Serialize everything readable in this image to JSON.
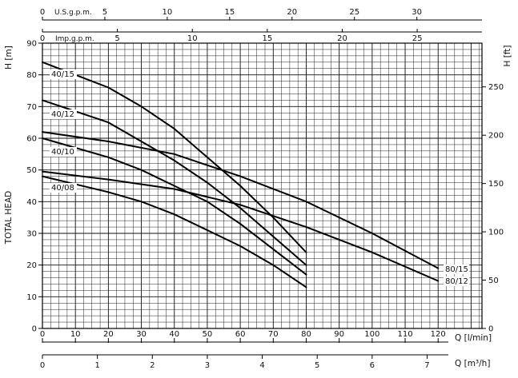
{
  "chart_data": {
    "type": "line",
    "title": "",
    "ylabel": "TOTAL HEAD",
    "y_left_unit": "H [m]",
    "y_right_unit": "H [ft]",
    "xlabel_lpm": "Q [l/min]",
    "xlabel_m3h": "Q [m³/h]",
    "xlabel_usgpm": "U.S.g.p.m.",
    "xlabel_impgpm": "Imp.g.p.m.",
    "xlim": [
      0,
      133.3
    ],
    "ylim": [
      0,
      90
    ],
    "grid": true,
    "y_left_ticks": [
      "0",
      "10",
      "20",
      "30",
      "40",
      "50",
      "60",
      "70",
      "80",
      "90"
    ],
    "y_left_tick_values": [
      0,
      10,
      20,
      30,
      40,
      50,
      60,
      70,
      80,
      90
    ],
    "y_right_ticks": [
      "0",
      "50",
      "100",
      "150",
      "200",
      "250"
    ],
    "y_right_tick_values": [
      0,
      50,
      100,
      150,
      200,
      250
    ],
    "x_lpm_ticks": [
      "0",
      "10",
      "20",
      "30",
      "40",
      "50",
      "60",
      "70",
      "80",
      "90",
      "100",
      "110",
      "120"
    ],
    "x_lpm_tick_values": [
      0,
      10,
      20,
      30,
      40,
      50,
      60,
      70,
      80,
      90,
      100,
      110,
      120
    ],
    "x_m3h_ticks": [
      "0",
      "1",
      "2",
      "3",
      "4",
      "5",
      "6",
      "7"
    ],
    "x_m3h_tick_values": [
      0,
      1,
      2,
      3,
      4,
      5,
      6,
      7
    ],
    "x_usgpm_ticks": [
      "0",
      "5",
      "10",
      "15",
      "20",
      "25",
      "30"
    ],
    "x_usgpm_tick_values": [
      0,
      5,
      10,
      15,
      20,
      25,
      30
    ],
    "x_impgpm_ticks": [
      "0",
      "5",
      "10",
      "15",
      "20",
      "25"
    ],
    "x_impgpm_tick_values": [
      0,
      5,
      10,
      15,
      20,
      25
    ],
    "series": [
      {
        "name": "40/15",
        "x": [
          0,
          20,
          30,
          40,
          50,
          60,
          70,
          80
        ],
        "y": [
          84,
          76,
          70,
          63,
          54,
          45,
          35,
          24
        ]
      },
      {
        "name": "40/12",
        "x": [
          0,
          20,
          30,
          40,
          50,
          60,
          70,
          80
        ],
        "y": [
          72,
          65,
          59,
          53,
          46,
          38,
          29,
          20
        ]
      },
      {
        "name": "40/10",
        "x": [
          0,
          20,
          30,
          40,
          50,
          60,
          70,
          80
        ],
        "y": [
          60,
          54,
          50,
          45,
          40,
          33,
          25,
          17
        ]
      },
      {
        "name": "40/08",
        "x": [
          0,
          20,
          30,
          40,
          50,
          60,
          70,
          80
        ],
        "y": [
          48,
          43,
          40,
          36,
          31,
          26,
          20,
          13
        ]
      },
      {
        "name": "80/15",
        "x": [
          0,
          20,
          40,
          60,
          80,
          100,
          120
        ],
        "y": [
          62,
          59,
          55,
          48,
          40,
          30,
          19
        ]
      },
      {
        "name": "80/12",
        "x": [
          0,
          20,
          40,
          60,
          80,
          100,
          120
        ],
        "y": [
          49.5,
          47,
          44,
          39,
          32,
          24,
          15
        ]
      }
    ]
  }
}
